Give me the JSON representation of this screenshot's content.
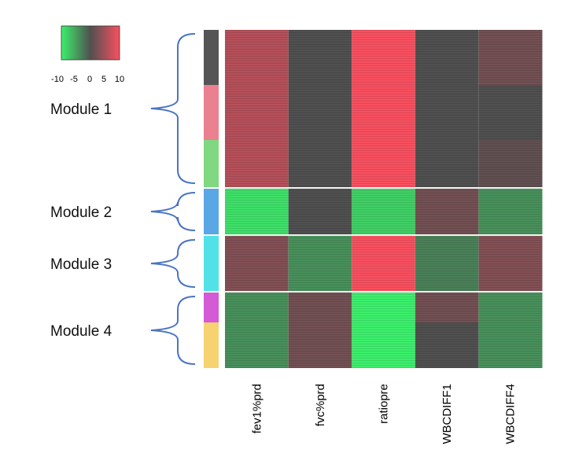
{
  "chart_data": {
    "type": "heatmap",
    "title": "",
    "columns": [
      "fev1%prd",
      "fvc%prd",
      "ratiopre",
      "WBCDIFF1",
      "WBCDIFF4"
    ],
    "legend": {
      "ticks": [
        "-10",
        "-5",
        "0",
        "5",
        "10"
      ],
      "range": [
        -10,
        10
      ],
      "colors": [
        "#3cf06c",
        "#505050",
        "#f85060"
      ]
    },
    "modules": [
      {
        "label": "Module 1",
        "color_bands": [
          "#555555",
          "#ea8090",
          "#80d880"
        ],
        "band_rows": [
          70,
          70,
          60
        ]
      },
      {
        "label": "Module 2",
        "color_bands": [
          "#5aa7e6"
        ],
        "band_rows": [
          58
        ]
      },
      {
        "label": "Module 3",
        "color_bands": [
          "#50e2e6"
        ],
        "band_rows": [
          70
        ]
      },
      {
        "label": "Module 4",
        "color_bands": [
          "#d55ad6",
          "#f6d270"
        ],
        "band_rows": [
          38,
          58
        ]
      }
    ],
    "cells": [
      {
        "region": "module-1",
        "values": [
          6,
          0,
          10,
          0,
          2
        ]
      },
      {
        "region": "module-2",
        "values": [
          -9,
          0,
          -8,
          2,
          -4
        ]
      },
      {
        "region": "module-3",
        "values": [
          3,
          -4,
          10,
          -3,
          3
        ]
      },
      {
        "region": "module-4",
        "values": [
          -4,
          2,
          -10,
          1,
          -4
        ]
      }
    ],
    "extra_cells": [
      {
        "module": 0,
        "band": 0,
        "column": 4,
        "value": 2
      },
      {
        "module": 0,
        "band": 1,
        "column": 4,
        "value": 0
      },
      {
        "module": 0,
        "band": 2,
        "column": 4,
        "value": 1
      },
      {
        "module": 3,
        "band": 0,
        "column": 3,
        "value": 2
      },
      {
        "module": 3,
        "band": 1,
        "column": 3,
        "value": 0
      }
    ],
    "bracket_color": "#4a74c4"
  }
}
